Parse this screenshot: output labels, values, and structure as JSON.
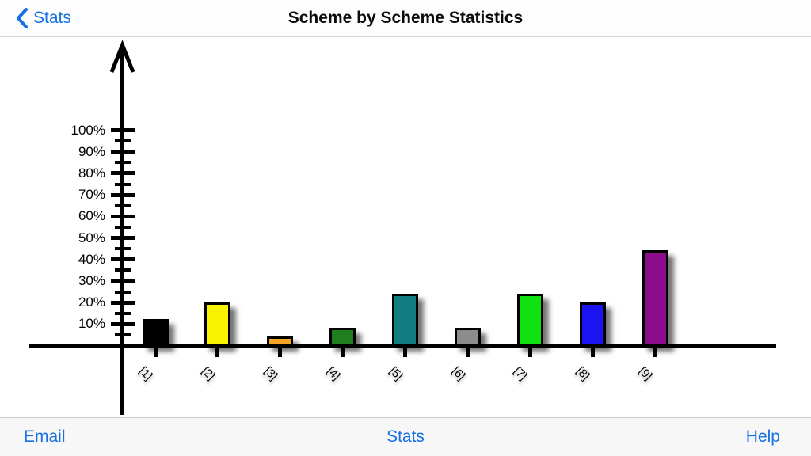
{
  "nav": {
    "back_label": "Stats",
    "title": "Scheme by Scheme Statistics"
  },
  "toolbar": {
    "email_label": "Email",
    "stats_label": "Stats",
    "help_label": "Help"
  },
  "colors": {
    "link_blue": "#1670e4",
    "axis_black": "#000000"
  },
  "chart_data": {
    "type": "bar",
    "title": "Scheme by Scheme Statistics",
    "categories": [
      "[1]",
      "[2]",
      "[3]",
      "[4]",
      "[5]",
      "[6]",
      "[7]",
      "[8]",
      "[9]"
    ],
    "values": [
      12,
      20,
      4,
      8,
      24,
      8,
      24,
      20,
      44
    ],
    "bar_colors": [
      "#000000",
      "#f8f303",
      "#f5a423",
      "#1f7f1f",
      "#107e80",
      "#8c8c8c",
      "#11e111",
      "#1a14f2",
      "#8b0d8b"
    ],
    "xlabel": "",
    "ylabel": "",
    "ylim": [
      0,
      100
    ],
    "grid": false,
    "legend": "none",
    "y_axis": {
      "unit": "%",
      "major_ticks": [
        {
          "value": 10,
          "label": "10%"
        },
        {
          "value": 20,
          "label": "20%"
        },
        {
          "value": 30,
          "label": "30%"
        },
        {
          "value": 40,
          "label": "40%"
        },
        {
          "value": 50,
          "label": "50%"
        },
        {
          "value": 60,
          "label": "60%"
        },
        {
          "value": 70,
          "label": "70%"
        },
        {
          "value": 80,
          "label": "80%"
        },
        {
          "value": 90,
          "label": "90%"
        },
        {
          "value": 100,
          "label": "100%"
        }
      ],
      "minor_ticks": [
        5,
        15,
        25,
        35,
        45,
        55,
        65,
        75,
        85,
        95
      ]
    }
  }
}
